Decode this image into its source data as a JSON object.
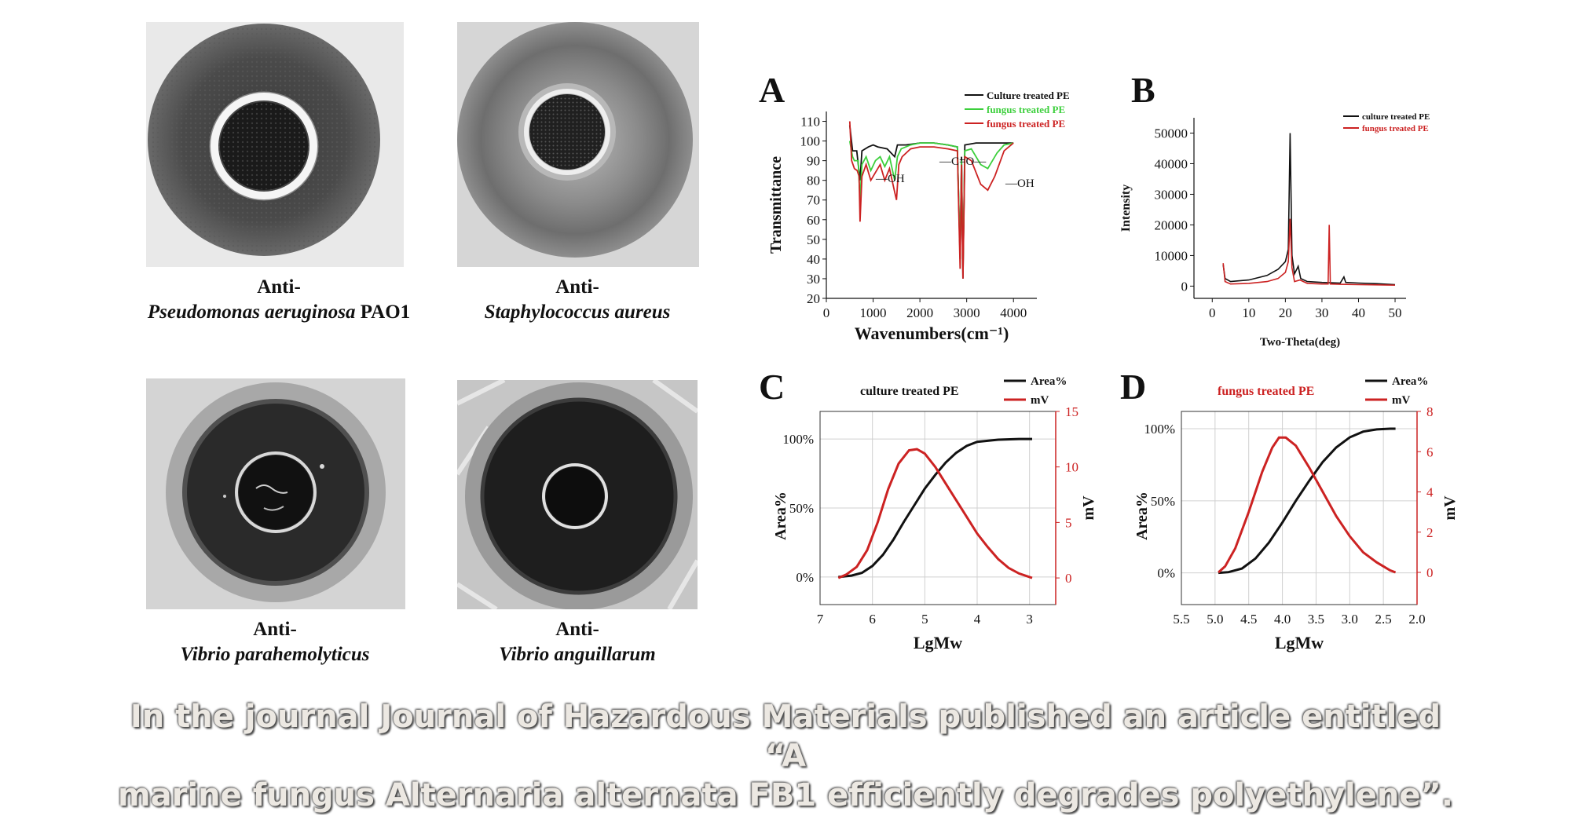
{
  "photos": [
    {
      "line1": "Anti-",
      "species": "Pseudomonas aeruginosa",
      "strain": " PAO1"
    },
    {
      "line1": "Anti-",
      "species": "Staphylococcus aureus",
      "strain": ""
    },
    {
      "line1": "Anti-",
      "species": "Vibrio parahemolyticus",
      "strain": ""
    },
    {
      "line1": "Anti-",
      "species": "Vibrio anguillarum",
      "strain": ""
    }
  ],
  "colors": {
    "black": "#111111",
    "green": "#3ccf3c",
    "red": "#cc2222"
  },
  "chart_data": [
    {
      "panel": "A",
      "type": "line",
      "xlabel": "Wavenumbers(cm⁻¹)",
      "ylabel": "Transmittance",
      "xlim": [
        0,
        4500
      ],
      "ylim": [
        20,
        115
      ],
      "xticks": [
        "0",
        "1000",
        "2000",
        "3000",
        "4000"
      ],
      "yticks": [
        "20",
        "30",
        "40",
        "50",
        "60",
        "70",
        "80",
        "90",
        "100",
        "110"
      ],
      "legend": [
        "Culture treated PE",
        "fungus treated  PE",
        "fungus treated  PE"
      ],
      "annotations": [
        "—OH",
        "—C=O—",
        "—OH"
      ],
      "series": [
        {
          "name": "Culture treated PE",
          "color": "black",
          "points": [
            [
              500,
              108
            ],
            [
              560,
              95
            ],
            [
              650,
              95
            ],
            [
              720,
              80
            ],
            [
              760,
              95
            ],
            [
              900,
              97
            ],
            [
              1000,
              98
            ],
            [
              1100,
              97
            ],
            [
              1300,
              96
            ],
            [
              1460,
              92
            ],
            [
              1520,
              98
            ],
            [
              1700,
              98
            ],
            [
              2000,
              99
            ],
            [
              2300,
              99
            ],
            [
              2600,
              98
            ],
            [
              2800,
              97
            ],
            [
              2860,
              40
            ],
            [
              2890,
              92
            ],
            [
              2920,
              30
            ],
            [
              2960,
              98
            ],
            [
              3200,
              99
            ],
            [
              3600,
              99
            ],
            [
              4000,
              99
            ]
          ]
        },
        {
          "name": "fungus treated  PE",
          "color": "green",
          "points": [
            [
              500,
              100
            ],
            [
              560,
              92
            ],
            [
              600,
              90
            ],
            [
              680,
              90
            ],
            [
              720,
              70
            ],
            [
              760,
              88
            ],
            [
              850,
              92
            ],
            [
              950,
              85
            ],
            [
              1050,
              90
            ],
            [
              1150,
              92
            ],
            [
              1250,
              87
            ],
            [
              1350,
              92
            ],
            [
              1460,
              80
            ],
            [
              1520,
              92
            ],
            [
              1600,
              96
            ],
            [
              1800,
              98
            ],
            [
              2000,
              99
            ],
            [
              2300,
              99
            ],
            [
              2600,
              98
            ],
            [
              2800,
              97
            ],
            [
              2860,
              42
            ],
            [
              2890,
              90
            ],
            [
              2920,
              34
            ],
            [
              2960,
              95
            ],
            [
              3100,
              96
            ],
            [
              3300,
              88
            ],
            [
              3450,
              86
            ],
            [
              3650,
              94
            ],
            [
              3800,
              98
            ],
            [
              4000,
              99
            ]
          ]
        },
        {
          "name": "fungus treated  PE",
          "color": "red",
          "points": [
            [
              500,
              110
            ],
            [
              540,
              90
            ],
            [
              600,
              86
            ],
            [
              660,
              85
            ],
            [
              700,
              82
            ],
            [
              720,
              59
            ],
            [
              760,
              82
            ],
            [
              850,
              88
            ],
            [
              950,
              80
            ],
            [
              1050,
              84
            ],
            [
              1150,
              88
            ],
            [
              1250,
              80
            ],
            [
              1350,
              86
            ],
            [
              1460,
              74
            ],
            [
              1500,
              70
            ],
            [
              1550,
              88
            ],
            [
              1620,
              92
            ],
            [
              1800,
              96
            ],
            [
              2000,
              97
            ],
            [
              2300,
              97
            ],
            [
              2600,
              96
            ],
            [
              2800,
              95
            ],
            [
              2860,
              35
            ],
            [
              2890,
              88
            ],
            [
              2920,
              30
            ],
            [
              2960,
              92
            ],
            [
              3100,
              90
            ],
            [
              3300,
              78
            ],
            [
              3450,
              75
            ],
            [
              3600,
              82
            ],
            [
              3800,
              95
            ],
            [
              4000,
              99
            ]
          ]
        }
      ]
    },
    {
      "panel": "B",
      "type": "line",
      "xlabel": "Two-Theta(deg)",
      "ylabel": "Intensity",
      "xlim": [
        -5,
        53
      ],
      "ylim": [
        -4000,
        55000
      ],
      "xticks": [
        "0",
        "10",
        "20",
        "30",
        "40",
        "50"
      ],
      "yticks": [
        "0",
        "10000",
        "20000",
        "30000",
        "40000",
        "50000"
      ],
      "legend": [
        "culture treated PE",
        "fungus treated PE"
      ],
      "series": [
        {
          "name": "culture treated PE",
          "color": "black",
          "points": [
            [
              3,
              7000
            ],
            [
              3.5,
              2500
            ],
            [
              5,
              1500
            ],
            [
              10,
              2000
            ],
            [
              15,
              3500
            ],
            [
              18,
              5500
            ],
            [
              20,
              8000
            ],
            [
              20.8,
              12000
            ],
            [
              21.3,
              50000
            ],
            [
              21.8,
              10000
            ],
            [
              22.5,
              4000
            ],
            [
              23.5,
              6500
            ],
            [
              24.2,
              2500
            ],
            [
              26,
              1500
            ],
            [
              30,
              1200
            ],
            [
              35,
              1000
            ],
            [
              36,
              3000
            ],
            [
              36.5,
              1200
            ],
            [
              40,
              1000
            ],
            [
              45,
              800
            ],
            [
              50,
              500
            ]
          ]
        },
        {
          "name": "fungus treated PE",
          "color": "red",
          "points": [
            [
              3,
              7500
            ],
            [
              3.5,
              1500
            ],
            [
              5,
              700
            ],
            [
              10,
              900
            ],
            [
              15,
              1500
            ],
            [
              18,
              2500
            ],
            [
              20,
              4500
            ],
            [
              20.8,
              8000
            ],
            [
              21.3,
              22000
            ],
            [
              21.8,
              6000
            ],
            [
              22.5,
              1500
            ],
            [
              24,
              2000
            ],
            [
              26,
              900
            ],
            [
              30,
              700
            ],
            [
              31.7,
              700
            ],
            [
              32,
              20000
            ],
            [
              32.3,
              700
            ],
            [
              35,
              600
            ],
            [
              40,
              500
            ],
            [
              45,
              400
            ],
            [
              50,
              300
            ]
          ]
        }
      ]
    },
    {
      "panel": "C",
      "type": "line",
      "title": "culture treated PE",
      "xlabel": "LgMw",
      "ylabel_left": "Area%",
      "ylabel_right": "mV",
      "xlim": [
        7,
        2.5
      ],
      "ylim_left": [
        -20,
        120
      ],
      "ylim_right": [
        -2.4,
        15
      ],
      "xticks": [
        "7",
        "6",
        "5",
        "4",
        "3"
      ],
      "yticks_left": [
        "0%",
        "50%",
        "100%"
      ],
      "yticks_right": [
        "0",
        "5",
        "10",
        "15"
      ],
      "legend": [
        "Area%",
        "mV"
      ],
      "series": [
        {
          "name": "Area%",
          "color": "black",
          "axis": "left",
          "points": [
            [
              6.65,
              0
            ],
            [
              6.4,
              1
            ],
            [
              6.2,
              3
            ],
            [
              6,
              8
            ],
            [
              5.8,
              16
            ],
            [
              5.6,
              27
            ],
            [
              5.4,
              40
            ],
            [
              5.2,
              52
            ],
            [
              5,
              64
            ],
            [
              4.8,
              74
            ],
            [
              4.6,
              83
            ],
            [
              4.4,
              90
            ],
            [
              4.2,
              95
            ],
            [
              4,
              98
            ],
            [
              3.6,
              99.5
            ],
            [
              3.2,
              100
            ],
            [
              2.95,
              100
            ]
          ]
        },
        {
          "name": "mV",
          "color": "red",
          "axis": "right",
          "points": [
            [
              6.65,
              0
            ],
            [
              6.5,
              0.3
            ],
            [
              6.3,
              1
            ],
            [
              6.1,
              2.5
            ],
            [
              5.9,
              5
            ],
            [
              5.7,
              8
            ],
            [
              5.5,
              10.3
            ],
            [
              5.3,
              11.5
            ],
            [
              5.15,
              11.6
            ],
            [
              5,
              11.2
            ],
            [
              4.8,
              10
            ],
            [
              4.6,
              8.5
            ],
            [
              4.4,
              7
            ],
            [
              4.2,
              5.5
            ],
            [
              4,
              4
            ],
            [
              3.8,
              2.8
            ],
            [
              3.6,
              1.7
            ],
            [
              3.4,
              0.9
            ],
            [
              3.2,
              0.4
            ],
            [
              2.95,
              0
            ]
          ]
        }
      ]
    },
    {
      "panel": "D",
      "type": "line",
      "title": "fungus treated PE",
      "xlabel": "LgMw",
      "ylabel_left": "Area%",
      "ylabel_right": "mV",
      "xlim": [
        5.5,
        2.0
      ],
      "ylim_left": [
        -22,
        112
      ],
      "ylim_right": [
        -1.6,
        8
      ],
      "xticks": [
        "5.5",
        "5.0",
        "4.5",
        "4.0",
        "3.5",
        "3.0",
        "2.5",
        "2.0"
      ],
      "yticks_left": [
        "0%",
        "50%",
        "100%"
      ],
      "yticks_right": [
        "0",
        "2",
        "4",
        "6",
        "8"
      ],
      "legend": [
        "Area%",
        "mV"
      ],
      "series": [
        {
          "name": "Area%",
          "color": "black",
          "axis": "left",
          "points": [
            [
              4.95,
              0
            ],
            [
              4.8,
              0.5
            ],
            [
              4.6,
              3
            ],
            [
              4.4,
              10
            ],
            [
              4.2,
              21
            ],
            [
              4,
              35
            ],
            [
              3.8,
              50
            ],
            [
              3.6,
              64
            ],
            [
              3.4,
              77
            ],
            [
              3.2,
              87
            ],
            [
              3,
              94
            ],
            [
              2.8,
              98
            ],
            [
              2.6,
              99.5
            ],
            [
              2.4,
              100
            ],
            [
              2.32,
              100
            ]
          ]
        },
        {
          "name": "mV",
          "color": "red",
          "axis": "right",
          "points": [
            [
              4.95,
              0
            ],
            [
              4.85,
              0.3
            ],
            [
              4.7,
              1.2
            ],
            [
              4.5,
              3
            ],
            [
              4.3,
              5
            ],
            [
              4.15,
              6.2
            ],
            [
              4.05,
              6.7
            ],
            [
              3.95,
              6.7
            ],
            [
              3.8,
              6.3
            ],
            [
              3.6,
              5.2
            ],
            [
              3.4,
              4
            ],
            [
              3.2,
              2.8
            ],
            [
              3,
              1.8
            ],
            [
              2.8,
              1
            ],
            [
              2.6,
              0.5
            ],
            [
              2.4,
              0.1
            ],
            [
              2.32,
              0
            ]
          ]
        }
      ]
    }
  ],
  "caption": {
    "line1": "In the journal Journal of Hazardous Materials published an article entitled “A",
    "line2": "marine fungus Alternaria alternata FB1 efficiently degrades polyethylene”."
  }
}
